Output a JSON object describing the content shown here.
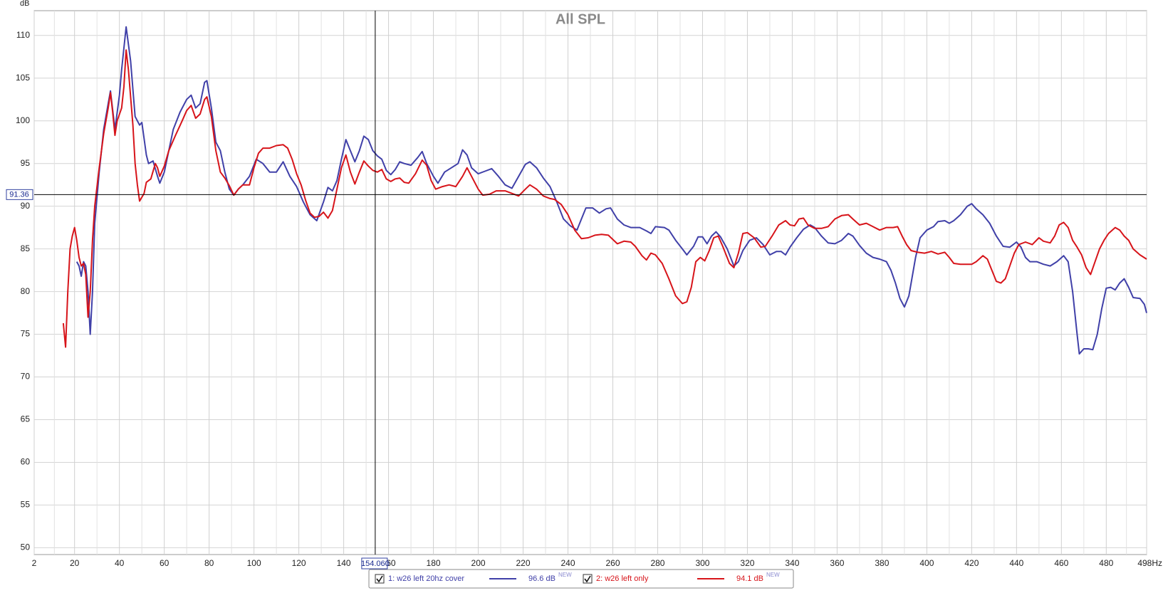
{
  "chart_data": {
    "type": "line",
    "title": "All SPL",
    "y_label": "dB",
    "xlim": [
      2,
      498
    ],
    "ylim": [
      49.2,
      112.9
    ],
    "xticks": [
      2,
      20,
      40,
      60,
      80,
      100,
      120,
      140,
      160,
      180,
      200,
      220,
      240,
      260,
      280,
      300,
      320,
      340,
      360,
      380,
      400,
      420,
      440,
      460,
      480,
      {
        "value": 498,
        "label": "498Hz"
      }
    ],
    "yticks": [
      50,
      55,
      60,
      65,
      70,
      75,
      80,
      85,
      90,
      95,
      100,
      105,
      110
    ],
    "grid": true,
    "cursor": {
      "x": {
        "value": 154.06,
        "label": "154.060"
      },
      "y": {
        "value": 91.36,
        "label": "91.36"
      }
    },
    "series": [
      {
        "name": "1: w26 left 20hz cover",
        "color": "#4040a8",
        "legend_value": "96.6 dB",
        "badge": "NEW",
        "x": [
          21,
          22,
          23,
          24,
          25,
          26,
          27,
          28,
          29,
          31,
          33,
          35,
          36,
          38,
          40,
          41,
          43,
          45,
          47,
          49,
          50,
          52,
          53,
          55,
          57,
          58,
          60,
          62,
          64,
          67,
          70,
          72,
          74,
          76,
          78,
          79,
          81,
          83,
          85,
          87,
          89,
          91,
          93,
          95,
          98,
          101,
          104,
          107,
          110,
          113,
          116,
          119,
          122,
          125,
          128,
          131,
          133,
          135,
          137,
          139,
          141,
          143,
          145,
          147,
          149,
          151,
          153,
          155,
          157,
          159,
          161,
          163,
          165,
          167,
          170,
          173,
          175,
          177,
          180,
          182,
          185,
          188,
          191,
          193,
          195,
          197,
          200,
          203,
          206,
          209,
          212,
          215,
          218,
          221,
          223,
          226,
          229,
          232,
          235,
          238,
          241,
          244,
          246,
          248,
          251,
          254,
          257,
          259,
          262,
          265,
          268,
          272,
          275,
          277,
          279,
          283,
          285,
          288,
          291,
          293,
          296,
          298,
          300,
          302,
          304,
          306,
          308,
          311,
          314,
          316,
          318,
          321,
          324,
          327,
          330,
          333,
          335,
          337,
          339,
          342,
          345,
          348,
          350,
          353,
          356,
          359,
          362,
          365,
          367,
          370,
          373,
          376,
          379,
          382,
          384,
          386,
          388,
          390,
          392,
          395,
          397,
          400,
          403,
          405,
          408,
          410,
          412,
          415,
          418,
          420,
          422,
          425,
          428,
          431,
          434,
          437,
          440,
          442,
          444,
          446,
          449,
          452,
          455,
          458,
          461,
          463,
          465,
          467,
          468,
          470,
          472,
          474,
          476,
          478,
          480,
          482,
          484,
          486,
          488,
          490,
          492,
          495,
          497,
          498
        ],
        "values": [
          83.5,
          83,
          81.8,
          83.5,
          83,
          80,
          75,
          80,
          88,
          94,
          99,
          102,
          103.5,
          99,
          103,
          106,
          111,
          107,
          100.5,
          99.5,
          99.8,
          96,
          95,
          95.3,
          93.5,
          92.7,
          94,
          96.5,
          99,
          101,
          102.5,
          103,
          101.5,
          102,
          104.5,
          104.7,
          101.5,
          97.5,
          96.5,
          94,
          92,
          91.3,
          92,
          92.5,
          93.5,
          95.5,
          95,
          94,
          94,
          95.2,
          93.5,
          92.3,
          90.5,
          89,
          88.3,
          90.5,
          92.2,
          91.8,
          93,
          95.5,
          97.8,
          96.5,
          95.2,
          96.5,
          98.2,
          97.8,
          96.5,
          95.9,
          95.5,
          94.2,
          93.7,
          94.3,
          95.2,
          95,
          94.8,
          95.7,
          96.4,
          95,
          93.5,
          92.7,
          94,
          94.5,
          95,
          96.6,
          96,
          94.5,
          93.8,
          94.1,
          94.4,
          93.5,
          92.5,
          92.1,
          93.5,
          94.9,
          95.2,
          94.5,
          93.3,
          92.3,
          90.5,
          88.5,
          87.7,
          87.2,
          88.5,
          89.8,
          89.8,
          89.2,
          89.7,
          89.8,
          88.5,
          87.8,
          87.5,
          87.5,
          87.1,
          86.8,
          87.6,
          87.5,
          87.2,
          86,
          85,
          84.3,
          85.3,
          86.4,
          86.4,
          85.6,
          86.5,
          87,
          86.4,
          85,
          83,
          83.5,
          84.8,
          86,
          86.3,
          85.5,
          84.3,
          84.7,
          84.7,
          84.3,
          85.2,
          86.3,
          87.3,
          87.8,
          87.5,
          86.5,
          85.7,
          85.6,
          86,
          86.8,
          86.5,
          85.4,
          84.5,
          84,
          83.8,
          83.5,
          82.5,
          81,
          79.2,
          78.2,
          79.5,
          84,
          86.3,
          87.2,
          87.6,
          88.2,
          88.3,
          88,
          88.3,
          89,
          90,
          90.3,
          89.7,
          89,
          88,
          86.5,
          85.3,
          85.2,
          85.8,
          85.2,
          84,
          83.5,
          83.5,
          83.2,
          83,
          83.5,
          84.2,
          83.5,
          80,
          75,
          72.7,
          73.3,
          73.3,
          73.2,
          75,
          78,
          80.4,
          80.5,
          80.2,
          81,
          81.5,
          80.5,
          79.3,
          79.2,
          78.5,
          77.5
        ]
      },
      {
        "name": "2: w26 left only",
        "color": "#d7141a",
        "legend_value": "94.1 dB",
        "badge": "NEW",
        "x": [
          15,
          16,
          17,
          18,
          19,
          20,
          21,
          22,
          23,
          24,
          25,
          26,
          27,
          28,
          29,
          31,
          33,
          35,
          36,
          37,
          38,
          39,
          41,
          42,
          43,
          44,
          46,
          47,
          48,
          49,
          51,
          52,
          54,
          56,
          57,
          58,
          60,
          62,
          65,
          68,
          70,
          72,
          74,
          76,
          78,
          79,
          81,
          83,
          85,
          87,
          89,
          91,
          93,
          95,
          98,
          100,
          102,
          104,
          107,
          110,
          113,
          115,
          117,
          119,
          121,
          123,
          125,
          127,
          129,
          131,
          133,
          135,
          137,
          139,
          141,
          143,
          145,
          147,
          149,
          151,
          153,
          155,
          157,
          159,
          161,
          163,
          165,
          167,
          169,
          172,
          175,
          177,
          179,
          181,
          184,
          187,
          190,
          193,
          195,
          197,
          200,
          202,
          205,
          208,
          212,
          215,
          218,
          221,
          223,
          226,
          229,
          232,
          234,
          237,
          240,
          243,
          246,
          249,
          252,
          255,
          258,
          260,
          262,
          265,
          268,
          270,
          273,
          275,
          277,
          279,
          282,
          285,
          288,
          291,
          293,
          295,
          297,
          299,
          301,
          303,
          305,
          307,
          309,
          312,
          314,
          316,
          318,
          320,
          323,
          326,
          328,
          331,
          334,
          337,
          339,
          341,
          343,
          345,
          347,
          350,
          353,
          356,
          359,
          362,
          365,
          367,
          370,
          373,
          376,
          379,
          382,
          385,
          387,
          389,
          391,
          393,
          396,
          399,
          402,
          405,
          408,
          410,
          412,
          415,
          420,
          422,
          425,
          427,
          429,
          431,
          433,
          435,
          437,
          439,
          441,
          444,
          447,
          450,
          452,
          455,
          457,
          459,
          461,
          463,
          465,
          467,
          469,
          471,
          473,
          475,
          477,
          479,
          481,
          484,
          486,
          488,
          490,
          492,
          495,
          498
        ],
        "values": [
          76.3,
          73.5,
          80,
          85,
          86.5,
          87.5,
          86,
          84,
          83,
          83.3,
          82,
          77,
          80,
          86,
          90,
          94.5,
          98.5,
          101.5,
          103.3,
          101,
          98.3,
          100,
          101.5,
          104,
          108.3,
          106,
          99.5,
          95,
          92.5,
          90.6,
          91.5,
          92.8,
          93.2,
          95,
          94.5,
          93.5,
          94.7,
          96.5,
          98.3,
          100,
          101.2,
          101.8,
          100.3,
          100.8,
          102.5,
          102.8,
          100.5,
          96.5,
          94,
          93.3,
          92.4,
          91.3,
          92,
          92.5,
          92.5,
          94.5,
          96.2,
          96.8,
          96.8,
          97.1,
          97.2,
          96.8,
          95.5,
          93.8,
          92.5,
          90.7,
          89.2,
          88.7,
          88.8,
          89.3,
          88.6,
          89.5,
          92,
          94.5,
          96,
          94,
          92.6,
          94,
          95.3,
          94.7,
          94.2,
          94,
          94.3,
          93.2,
          92.9,
          93.2,
          93.3,
          92.8,
          92.7,
          93.8,
          95.4,
          94.8,
          93,
          92,
          92.3,
          92.5,
          92.3,
          93.5,
          94.5,
          93.5,
          92,
          91.3,
          91.4,
          91.8,
          91.8,
          91.5,
          91.2,
          92,
          92.5,
          92,
          91.2,
          90.9,
          90.8,
          90.2,
          89,
          87.2,
          86.2,
          86.3,
          86.6,
          86.7,
          86.6,
          86.1,
          85.6,
          85.9,
          85.8,
          85.3,
          84.2,
          83.7,
          84.5,
          84.3,
          83.3,
          81.5,
          79.5,
          78.6,
          78.8,
          80.5,
          83.5,
          84,
          83.6,
          84.8,
          86.3,
          86.5,
          85.3,
          83.3,
          82.8,
          84.5,
          86.8,
          86.9,
          86.3,
          85.2,
          85.3,
          86.5,
          87.8,
          88.3,
          87.8,
          87.7,
          88.5,
          88.6,
          87.8,
          87.4,
          87.4,
          87.6,
          88.5,
          88.9,
          89,
          88.5,
          87.8,
          88,
          87.6,
          87.2,
          87.5,
          87.5,
          87.6,
          86.5,
          85.5,
          84.8,
          84.6,
          84.5,
          84.7,
          84.4,
          84.6,
          84,
          83.3,
          83.2,
          83.2,
          83.5,
          84.2,
          83.8,
          82.5,
          81.2,
          81,
          81.5,
          83,
          84.5,
          85.5,
          85.8,
          85.5,
          86.3,
          85.9,
          85.7,
          86.5,
          87.8,
          88.1,
          87.5,
          86,
          85.2,
          84.3,
          82.8,
          82,
          83.5,
          85,
          86,
          86.8,
          87.5,
          87.2,
          86.5,
          86,
          85,
          84.3,
          83.8
        ]
      }
    ]
  }
}
